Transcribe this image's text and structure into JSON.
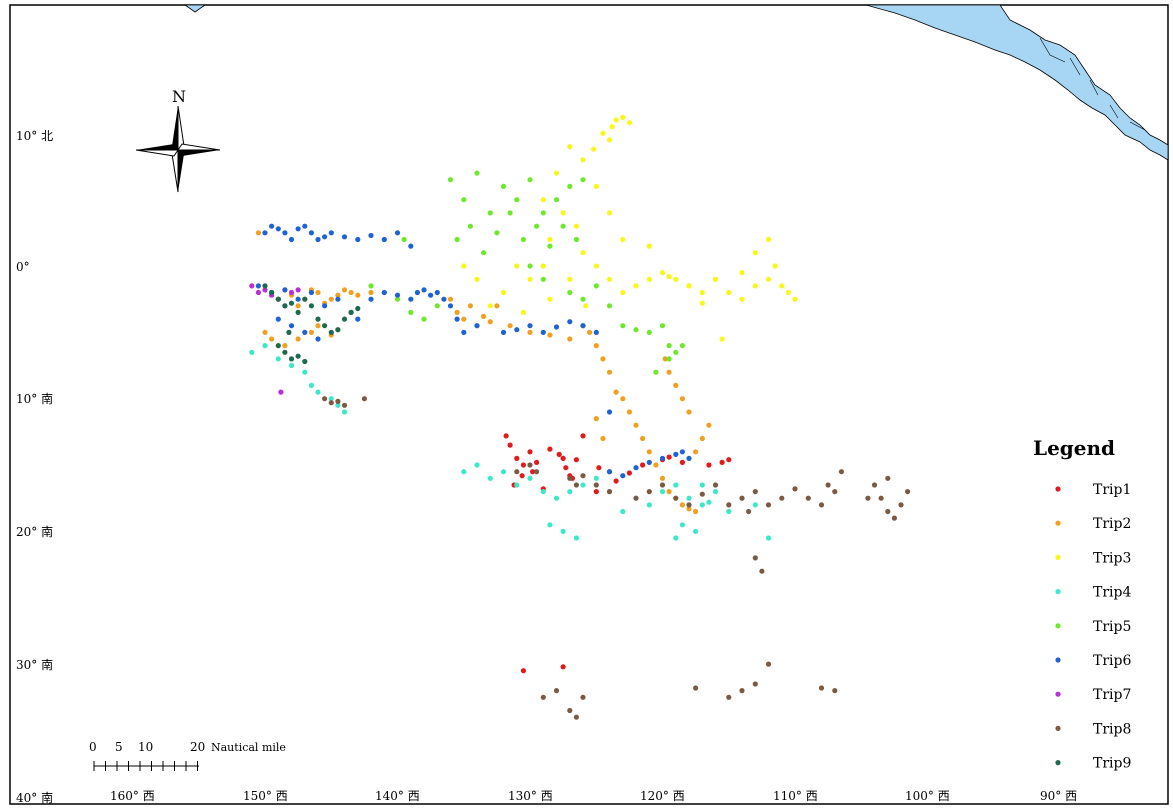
{
  "north_arrow_label": "N",
  "legend": {
    "title": "Legend",
    "items": [
      {
        "name": "Trip1",
        "color": "#e31a1c"
      },
      {
        "name": "Trip2",
        "color": "#f0a020"
      },
      {
        "name": "Trip3",
        "color": "#f7f71a"
      },
      {
        "name": "Trip4",
        "color": "#3de8c8"
      },
      {
        "name": "Trip5",
        "color": "#6ee82a"
      },
      {
        "name": "Trip6",
        "color": "#1f62d4"
      },
      {
        "name": "Trip7",
        "color": "#b82ed8"
      },
      {
        "name": "Trip8",
        "color": "#7b5a44"
      },
      {
        "name": "Trip9",
        "color": "#1e6a50"
      }
    ]
  },
  "scale_bar": {
    "ticks": [
      "0",
      "5",
      "10",
      "20"
    ],
    "unit": "Nautical mile"
  },
  "lat_labels": [
    "10° 北",
    "0°",
    "10° 南",
    "20° 南",
    "30° 南",
    "40° 南"
  ],
  "lon_labels": [
    "160° 西",
    "150° 西",
    "140° 西",
    "130° 西",
    "120° 西",
    "110° 西",
    "100° 西",
    "90° 西"
  ],
  "land_color": "#a6d6f4",
  "chart_data": {
    "type": "scatter",
    "axes": {
      "lon_range": [
        -165,
        -88
      ],
      "lat_range": [
        -40,
        20
      ]
    },
    "series": [
      {
        "name": "Trip1",
        "x": [
          -131.5,
          -131,
          -130.5,
          -130,
          -129.8,
          -131.2,
          -130.6,
          -129.5,
          -127.5,
          -127,
          -126.8,
          -127.8,
          -127.3,
          -126.5,
          -124.8,
          -124,
          -123.5,
          -122.5,
          -121.5,
          -120,
          -119.5,
          -118.5,
          -116.5,
          -115.5,
          -115,
          -130.5,
          -127.5,
          -125,
          -131.8,
          -129,
          -128.5,
          -126
        ],
        "y": [
          -13.5,
          -14.5,
          -15,
          -14,
          -15.5,
          -16.5,
          -15.8,
          -14.8,
          -14.5,
          -15.8,
          -16,
          -14.2,
          -15.2,
          -14.6,
          -15.2,
          -15.5,
          -16.2,
          -15.6,
          -15,
          -14.6,
          -14.4,
          -14.8,
          -15,
          -14.8,
          -14.6,
          -30.5,
          -30.2,
          -17,
          -12.8,
          -16.8,
          -13.8,
          -12.8
        ]
      },
      {
        "name": "Trip2",
        "x": [
          -150.5,
          -149.5,
          -149,
          -148.5,
          -148,
          -147.5,
          -147,
          -146.5,
          -146,
          -145.5,
          -145,
          -144.5,
          -144,
          -143.5,
          -143,
          -142,
          -150,
          -149.5,
          -148.5,
          -147.5,
          -146.5,
          -146,
          -145,
          -144.5,
          -136,
          -135.5,
          -135,
          -134.5,
          -134,
          -133.5,
          -133,
          -132.5,
          -131.5,
          -130,
          -128.5,
          -127,
          -126,
          -125.5,
          -125,
          -124.5,
          -124,
          -123.5,
          -123,
          -122.5,
          -122,
          -121.5,
          -121,
          -120.5,
          -120,
          -119.5,
          -119,
          -118.5,
          -118,
          -117.5,
          -117.5,
          -117,
          -116.5,
          -118,
          -118.5,
          -119,
          -119.5,
          -119.8,
          -125,
          -124.5,
          -124
        ],
        "y": [
          2.5,
          -2,
          -2.5,
          -1.8,
          -2.2,
          -3,
          -2.5,
          -1.8,
          -2,
          -2.8,
          -2.5,
          -2.2,
          -1.8,
          -2,
          -2.2,
          -2,
          -5,
          -5.5,
          -6,
          -5.5,
          -5,
          -4.5,
          -5.2,
          -4.8,
          -2.5,
          -3.5,
          -4,
          -3,
          -4.5,
          -3.8,
          -4.2,
          -3,
          -4.5,
          -5,
          -5.2,
          -5.5,
          -4.5,
          -5,
          -6,
          -7,
          -8,
          -9.5,
          -10,
          -11,
          -12,
          -13,
          -14,
          -15,
          -16,
          -17,
          -17.5,
          -18,
          -18.3,
          -18.5,
          -14,
          -13,
          -12,
          -11,
          -10,
          -9,
          -8,
          -7,
          -11.5,
          -13,
          -15.5
        ]
      },
      {
        "name": "Trip3",
        "x": [
          -123.5,
          -123,
          -122.5,
          -123.8,
          -124.5,
          -124,
          -125.2,
          -126,
          -127,
          -128,
          -129,
          -125,
          -124,
          -123,
          -126.5,
          -127.5,
          -128.5,
          -126,
          -125,
          -124,
          -123,
          -122,
          -121,
          -120,
          -119,
          -118,
          -117,
          -116,
          -115,
          -114,
          -113,
          -112,
          -111,
          -110.5,
          -110,
          -111.5,
          -112,
          -113,
          -114,
          -116,
          -118,
          -129,
          -130,
          -131,
          -132,
          -133,
          -134,
          -135,
          -130.5,
          -128.5,
          -127,
          -125.8,
          -121,
          -119.5,
          -117,
          -115.5
        ],
        "y": [
          11,
          11.2,
          10.8,
          10.5,
          10,
          9.5,
          8.8,
          8,
          9,
          7,
          5,
          6,
          4,
          2,
          3,
          4,
          2,
          1,
          0,
          -1,
          -2,
          -1.5,
          -1,
          -0.5,
          -1,
          -1.5,
          -2,
          -1,
          -2,
          -2.5,
          -1.5,
          -1,
          -1.5,
          -2,
          -2.5,
          0,
          2,
          1,
          -0.5,
          -1,
          -1.5,
          0,
          -1,
          0,
          -2,
          -3,
          -1,
          0,
          -3.5,
          -2.5,
          -1,
          -3,
          1.5,
          -0.8,
          -2.8,
          -5.5
        ]
      },
      {
        "name": "Trip4",
        "x": [
          -151,
          -150,
          -149,
          -148,
          -147,
          -146.5,
          -146,
          -145,
          -144.5,
          -144,
          -135,
          -134,
          -133,
          -132,
          -131,
          -130,
          -129,
          -128,
          -127,
          -126,
          -125,
          -124,
          -123,
          -122,
          -121,
          -120,
          -119,
          -118,
          -117,
          -116,
          -115,
          -114,
          -113,
          -112,
          -128.5,
          -127.5,
          -126.5,
          -119,
          -118.5,
          -117.5,
          -117,
          -116.5
        ],
        "y": [
          -6.5,
          -6,
          -7,
          -7.5,
          -8,
          -9,
          -9.5,
          -10,
          -10.5,
          -11,
          -15.5,
          -15,
          -16,
          -15.5,
          -16.5,
          -16,
          -17,
          -17.5,
          -17,
          -16.5,
          -16,
          -17,
          -18.5,
          -17.5,
          -18,
          -17,
          -16.5,
          -17.5,
          -18,
          -17,
          -18.5,
          -17.5,
          -18,
          -20.5,
          -19.5,
          -20,
          -20.5,
          -20.5,
          -19.5,
          -20,
          -16.5,
          -17.8
        ]
      },
      {
        "name": "Trip5",
        "x": [
          -136,
          -135,
          -134,
          -133,
          -132,
          -131,
          -130,
          -129,
          -128,
          -127,
          -126,
          -135.5,
          -134.5,
          -133.5,
          -132.5,
          -131.5,
          -130.5,
          -129.5,
          -128.5,
          -127.5,
          -126.5,
          -130,
          -129,
          -127,
          -126,
          -125,
          -124,
          -123,
          -122,
          -121,
          -120,
          -119.5,
          -119,
          -118.5,
          -119.5,
          -120.5,
          -137,
          -138,
          -139,
          -140,
          -141,
          -142,
          -139.5
        ],
        "y": [
          6.5,
          5,
          7,
          4,
          6,
          5,
          6.5,
          4,
          5,
          6,
          6.5,
          2,
          3,
          1,
          2.5,
          4,
          2,
          3,
          1.5,
          3,
          2,
          0,
          -1,
          -2,
          -2.5,
          -1.5,
          -3,
          -4.5,
          -4.8,
          -5,
          -4.5,
          -6,
          -6.5,
          -6,
          -7,
          -8,
          -3,
          -4,
          -3.5,
          -2.5,
          -2,
          -1.5,
          2
        ]
      },
      {
        "name": "Trip6",
        "x": [
          -150,
          -149.5,
          -149,
          -148.5,
          -148,
          -147.5,
          -147,
          -146.5,
          -146,
          -145.5,
          -145,
          -144,
          -143,
          -142,
          -141,
          -140,
          -139,
          -150.5,
          -149.5,
          -148.5,
          -147.5,
          -146.5,
          -145.5,
          -144.5,
          -143.5,
          -143,
          -142,
          -141,
          -140,
          -139,
          -138.5,
          -138,
          -137.5,
          -137,
          -136.5,
          -136,
          -135.5,
          -135,
          -134,
          -132,
          -131,
          -130,
          -129,
          -128,
          -127,
          -126,
          -125,
          -124,
          -123,
          -122,
          -121,
          -120,
          -119,
          -118.5,
          -118,
          -124,
          -149,
          -148,
          -147,
          -146
        ],
        "y": [
          2.5,
          3,
          2.8,
          2.5,
          2,
          2.8,
          3,
          2.5,
          2,
          2.2,
          2.5,
          2.2,
          2,
          2.3,
          2,
          2.5,
          1.5,
          -1.5,
          -2,
          -1.8,
          -2.5,
          -2,
          -3,
          -2.5,
          -3.5,
          -4,
          -2.5,
          -2,
          -2.2,
          -2.5,
          -2,
          -1.8,
          -2.2,
          -2,
          -2.5,
          -3,
          -4,
          -5,
          -4.5,
          -5,
          -4.8,
          -4.5,
          -5,
          -4.6,
          -4.2,
          -4.5,
          -5,
          -15.5,
          -15.8,
          -15.2,
          -14.8,
          -14.5,
          -14.2,
          -14,
          -14.5,
          -11,
          -4,
          -4.5,
          -5,
          -5.5
        ]
      },
      {
        "name": "Trip7",
        "x": [
          -151,
          -150.5,
          -150,
          -149.5,
          -149,
          -148.5,
          -148,
          -147.5,
          -148.8
        ],
        "y": [
          -1.5,
          -2,
          -1.8,
          -2.2,
          -2.5,
          -3,
          -2,
          -1.8,
          -9.5
        ]
      },
      {
        "name": "Trip8",
        "x": [
          -145.5,
          -145,
          -144.5,
          -144,
          -142.5,
          -131,
          -130,
          -129.5,
          -127,
          -126.5,
          -126,
          -125,
          -124,
          -122,
          -121,
          -120,
          -119,
          -118,
          -117,
          -116,
          -115,
          -114,
          -113.5,
          -113,
          -112,
          -111,
          -110,
          -109,
          -108,
          -107.5,
          -107,
          -106.5,
          -104,
          -103.5,
          -103,
          -102.5,
          -102,
          -101.5,
          -103,
          -104.5,
          -113,
          -112.5,
          -129,
          -128,
          -127,
          -126,
          -126.5,
          -117.5,
          -115,
          -114,
          -113,
          -112,
          -108,
          -107
        ],
        "y": [
          -10,
          -10.3,
          -10.2,
          -10.5,
          -10,
          -15.5,
          -15,
          -15.5,
          -16,
          -16.5,
          -15.8,
          -16.5,
          -17,
          -17.5,
          -17,
          -16.5,
          -17.5,
          -18,
          -17.2,
          -16.5,
          -18,
          -17.5,
          -18.5,
          -17,
          -18,
          -17.5,
          -16.8,
          -17.5,
          -18,
          -16.5,
          -17,
          -15.5,
          -16.5,
          -17.5,
          -18.5,
          -19,
          -18,
          -17,
          -16,
          -17.5,
          -22,
          -23,
          -32.5,
          -32,
          -33.5,
          -32.5,
          -34,
          -31.8,
          -32.5,
          -32,
          -31.5,
          -30,
          -31.8,
          -32
        ]
      },
      {
        "name": "Trip9",
        "x": [
          -150,
          -149.5,
          -149,
          -148.5,
          -148,
          -147.5,
          -147,
          -146.5,
          -146,
          -145.5,
          -145,
          -144.5,
          -144,
          -143.5,
          -143,
          -149,
          -148.5,
          -148,
          -147.5,
          -147,
          -148.2
        ],
        "y": [
          -1.5,
          -2,
          -2.5,
          -3,
          -2.8,
          -3.5,
          -2.5,
          -3,
          -4,
          -4.5,
          -5,
          -4.8,
          -4,
          -3.5,
          -3.2,
          -6,
          -6.5,
          -7,
          -6.8,
          -7.2,
          -5
        ]
      }
    ]
  }
}
